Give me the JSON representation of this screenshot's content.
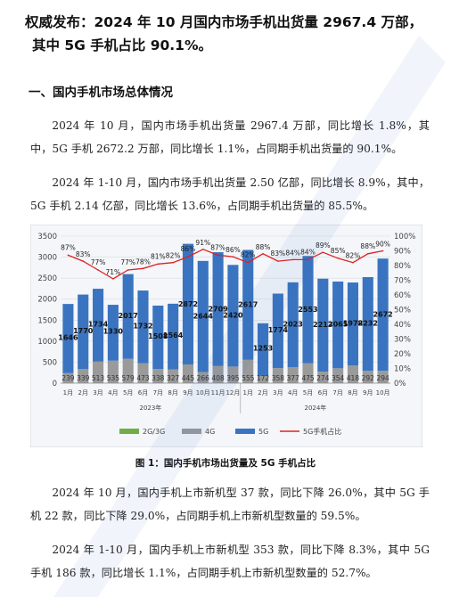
{
  "title_line1": "权威发布：2024 年 10 月国内市场手机出货量 2967.4 万部，",
  "title_line2": "其中 5G 手机占比 90.1%。",
  "section_heading": "一、国内手机市场总体情况",
  "para1": "2024 年 10 月，国内市场手机出货量 2967.4 万部，同比增长 1.8%，其中，5G 手机 2672.2 万部，同比增长 1.1%，占同期手机出货量的 90.1%。",
  "para2": "2024 年 1-10 月，国内市场手机出货量 2.50 亿部，同比增长 8.9%，其中，5G 手机 2.14 亿部，同比增长 13.6%，占同期手机出货量的 85.5%。",
  "para3": "2024 年 10 月，国内手机上市新机型 37 款，同比下降 26.0%，其中 5G 手机 22 款，同比下降 29.0%，占同期手机上市新机型数量的 59.5%。",
  "para4": "2024 年 1-10 月，国内手机上市新机型 353 款，同比下降 8.3%，其中 5G 手机 186 款，同比增长 1.1%，占同期手机上市新机型数量的 52.7%。",
  "caption": "图 1：国内手机市场出货量及 5G 手机占比",
  "colors": {
    "g4": "#9a9a9a",
    "g5": "#3a74c0",
    "g23": "#70ad47",
    "share": "#e02020",
    "chart_bg": "#f4f6f9"
  },
  "chart_data": {
    "type": "bar",
    "categories": [
      "1月",
      "2月",
      "3月",
      "4月",
      "5月",
      "6月",
      "7月",
      "8月",
      "9月",
      "10月",
      "11月",
      "12月",
      "1月",
      "2月",
      "3月",
      "4月",
      "5月",
      "6月",
      "7月",
      "8月",
      "9月",
      "10月"
    ],
    "groups": [
      "2023年",
      "2024年"
    ],
    "group_sizes": [
      12,
      10
    ],
    "ylim": [
      0,
      3500
    ],
    "yticks": [
      "0",
      "500",
      "1000",
      "1500",
      "2000",
      "2500",
      "3000",
      "3500"
    ],
    "y2ticks": [
      "0%",
      "10%",
      "20%",
      "30%",
      "40%",
      "50%",
      "60%",
      "70%",
      "80%",
      "90%",
      "100%"
    ],
    "series": [
      {
        "name": "4G",
        "values": [
          239,
          339,
          513,
          535,
          579,
          473,
          338,
          327,
          445,
          266,
          408,
          395,
          555,
          172,
          358,
          377,
          475,
          274,
          354,
          418,
          292,
          294
        ],
        "labels": [
          "239",
          "339",
          "513",
          "535",
          "579",
          "473",
          "338",
          "327",
          "445",
          "266",
          "408",
          "395",
          "555",
          "172",
          "358",
          "377",
          "475",
          "274",
          "354",
          "418",
          "292",
          "294"
        ]
      },
      {
        "name": "5G",
        "values": [
          1646,
          1770,
          1734,
          1330,
          2017,
          1732,
          1508,
          1564,
          2872,
          2644,
          2709,
          2420,
          2617,
          1253,
          1774,
          2023,
          2553,
          2213,
          2065,
          1978,
          2232,
          2672
        ],
        "labels": [
          "1646",
          "1770",
          "1734",
          "1330",
          "2017",
          "1732",
          "1508",
          "1564",
          "2872",
          "2644",
          "2709",
          "2420",
          "2617",
          "1253",
          "1774",
          "2023",
          "2553",
          "2213",
          "2065",
          "1978",
          "2232",
          "2672"
        ]
      },
      {
        "name": "5G手机占比",
        "values": [
          87,
          83,
          77,
          71,
          77,
          78,
          81,
          82,
          86,
          91,
          87,
          86,
          82,
          88,
          83,
          84,
          84,
          89,
          85,
          82,
          88,
          90
        ],
        "labels": [
          "87%",
          "83%",
          "77%",
          "71%",
          "77%",
          "78%",
          "81%",
          "82%",
          "86%",
          "91%",
          "87%",
          "86%",
          "82%",
          "88%",
          "83%",
          "84%",
          "84%",
          "89%",
          "85%",
          "82%",
          "88%",
          "90%"
        ]
      }
    ],
    "legend": [
      "2G/3G",
      "4G",
      "5G",
      "5G手机占比"
    ],
    "legend_position": "bottom",
    "grid": true
  }
}
